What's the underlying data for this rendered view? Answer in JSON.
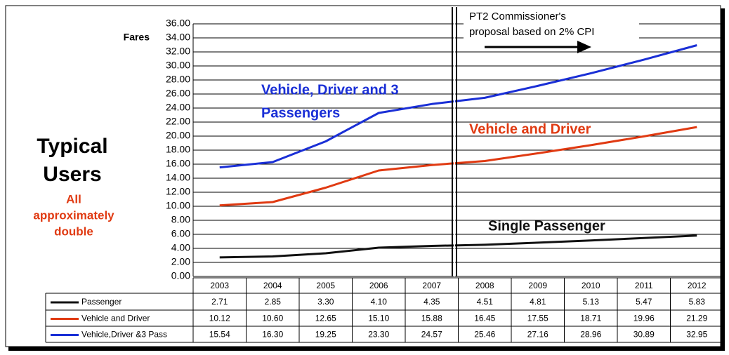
{
  "chart_data": {
    "type": "line",
    "title": [
      "Typical",
      "Users"
    ],
    "subtitle": [
      "All",
      "approximately",
      "double"
    ],
    "ylabel": "Fares",
    "categories": [
      "2003",
      "2004",
      "2005",
      "2006",
      "2007",
      "2008",
      "2009",
      "2010",
      "2011",
      "2012"
    ],
    "series": [
      {
        "name": "Passenger",
        "color": "#111111",
        "values": [
          2.71,
          2.85,
          3.3,
          4.1,
          4.35,
          4.51,
          4.81,
          5.13,
          5.47,
          5.83
        ],
        "value_labels": [
          "2.71",
          "2.85",
          "3.30",
          "4.10",
          "4.35",
          "4.51",
          "4.81",
          "5.13",
          "5.47",
          "5.83"
        ]
      },
      {
        "name": "Vehicle and Driver",
        "color": "#e03a12",
        "values": [
          10.12,
          10.6,
          12.65,
          15.1,
          15.88,
          16.45,
          17.55,
          18.71,
          19.96,
          21.29
        ],
        "value_labels": [
          "10.12",
          "10.60",
          "12.65",
          "15.10",
          "15.88",
          "16.45",
          "17.55",
          "18.71",
          "19.96",
          "21.29"
        ]
      },
      {
        "name": "Vehicle,Driver &3 Pass",
        "color": "#1a2fd6",
        "values": [
          15.54,
          16.3,
          19.25,
          23.3,
          24.57,
          25.46,
          27.16,
          28.96,
          30.89,
          32.95
        ],
        "value_labels": [
          "15.54",
          "16.30",
          "19.25",
          "23.30",
          "24.57",
          "25.46",
          "27.16",
          "28.96",
          "30.89",
          "32.95"
        ]
      }
    ],
    "ylim": [
      0,
      36
    ],
    "yticks": [
      {
        "value": 0,
        "label": "0.00"
      },
      {
        "value": 2,
        "label": "2.00"
      },
      {
        "value": 4,
        "label": "4.00"
      },
      {
        "value": 6,
        "label": "6.00"
      },
      {
        "value": 8,
        "label": "8.00"
      },
      {
        "value": 10,
        "label": "10.00"
      },
      {
        "value": 12,
        "label": "12.00"
      },
      {
        "value": 14,
        "label": "14.00"
      },
      {
        "value": 16,
        "label": "16.00"
      },
      {
        "value": 18,
        "label": "18.00"
      },
      {
        "value": 20,
        "label": "20.00"
      },
      {
        "value": 22,
        "label": "22.00"
      },
      {
        "value": 24,
        "label": "24.00"
      },
      {
        "value": 26,
        "label": "26.00"
      },
      {
        "value": 28,
        "label": "28.00"
      },
      {
        "value": 30,
        "label": "30.00"
      },
      {
        "value": 32,
        "label": "32.00"
      },
      {
        "value": 34,
        "label": "34.00"
      },
      {
        "value": 36,
        "label": "36.00"
      }
    ],
    "grid": true,
    "annotations": [
      {
        "text": "Vehicle, Driver and 3",
        "color": "#1a2fd6"
      },
      {
        "text": "Passengers",
        "color": "#1a2fd6"
      },
      {
        "text": "Vehicle and Driver",
        "color": "#e03a12"
      },
      {
        "text": "Single Passenger",
        "color": "#111111"
      },
      {
        "text": "PT2 Commissioner's",
        "color": "#000000"
      },
      {
        "text": "proposal based on 2% CPI",
        "color": "#000000"
      }
    ]
  }
}
